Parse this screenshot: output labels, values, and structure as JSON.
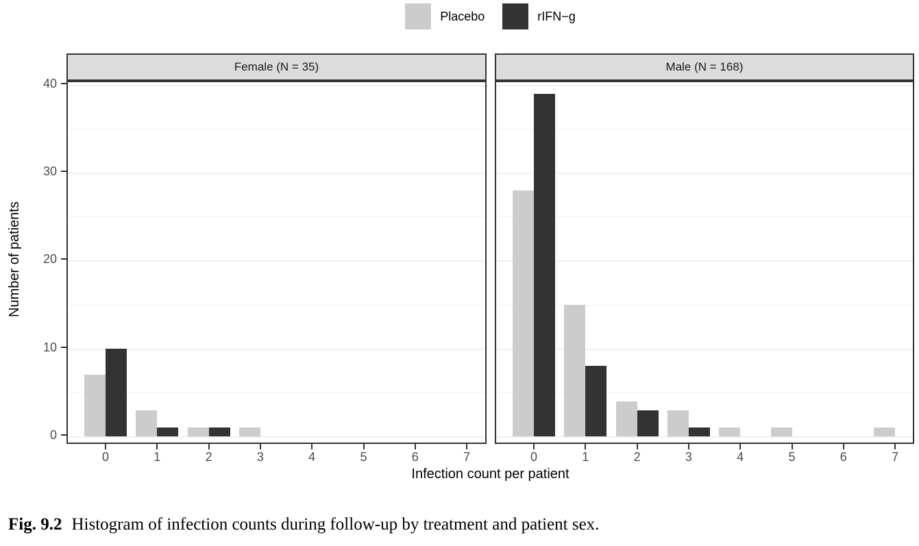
{
  "legend": {
    "items": [
      {
        "label": "Placebo",
        "color": "#CCCCCC"
      },
      {
        "label": "rIFN−g",
        "color": "#333333"
      }
    ]
  },
  "y_axis": {
    "title": "Number of patients",
    "ticks": [
      0,
      10,
      20,
      30,
      40
    ]
  },
  "x_axis": {
    "title": "Infection count per patient",
    "ticks": [
      "0",
      "1",
      "2",
      "3",
      "4",
      "5",
      "6",
      "7"
    ]
  },
  "caption": {
    "label": "Fig. 9.2",
    "text": "Histogram of infection counts during follow-up by treatment and patient sex."
  },
  "chart_data": {
    "type": "bar",
    "categories": [
      "0",
      "1",
      "2",
      "3",
      "4",
      "5",
      "6",
      "7"
    ],
    "facets": [
      {
        "title": "Female (N = 35)",
        "series": [
          {
            "name": "Placebo",
            "color": "#CCCCCC",
            "values": [
              7,
              3,
              1,
              1,
              0,
              0,
              0,
              0
            ]
          },
          {
            "name": "rIFN−g",
            "color": "#333333",
            "values": [
              10,
              1,
              1,
              0,
              0,
              0,
              0,
              0
            ]
          }
        ]
      },
      {
        "title": "Male (N = 168)",
        "series": [
          {
            "name": "Placebo",
            "color": "#CCCCCC",
            "values": [
              28,
              15,
              4,
              3,
              1,
              1,
              0,
              1
            ]
          },
          {
            "name": "rIFN−g",
            "color": "#333333",
            "values": [
              39,
              8,
              3,
              1,
              0,
              0,
              0,
              0
            ]
          }
        ]
      }
    ],
    "title": "",
    "xlabel": "Infection count per patient",
    "ylabel": "Number of patients",
    "ylim": [
      0,
      40
    ],
    "grid": "horizontal, every 5",
    "legend_position": "top-center"
  }
}
